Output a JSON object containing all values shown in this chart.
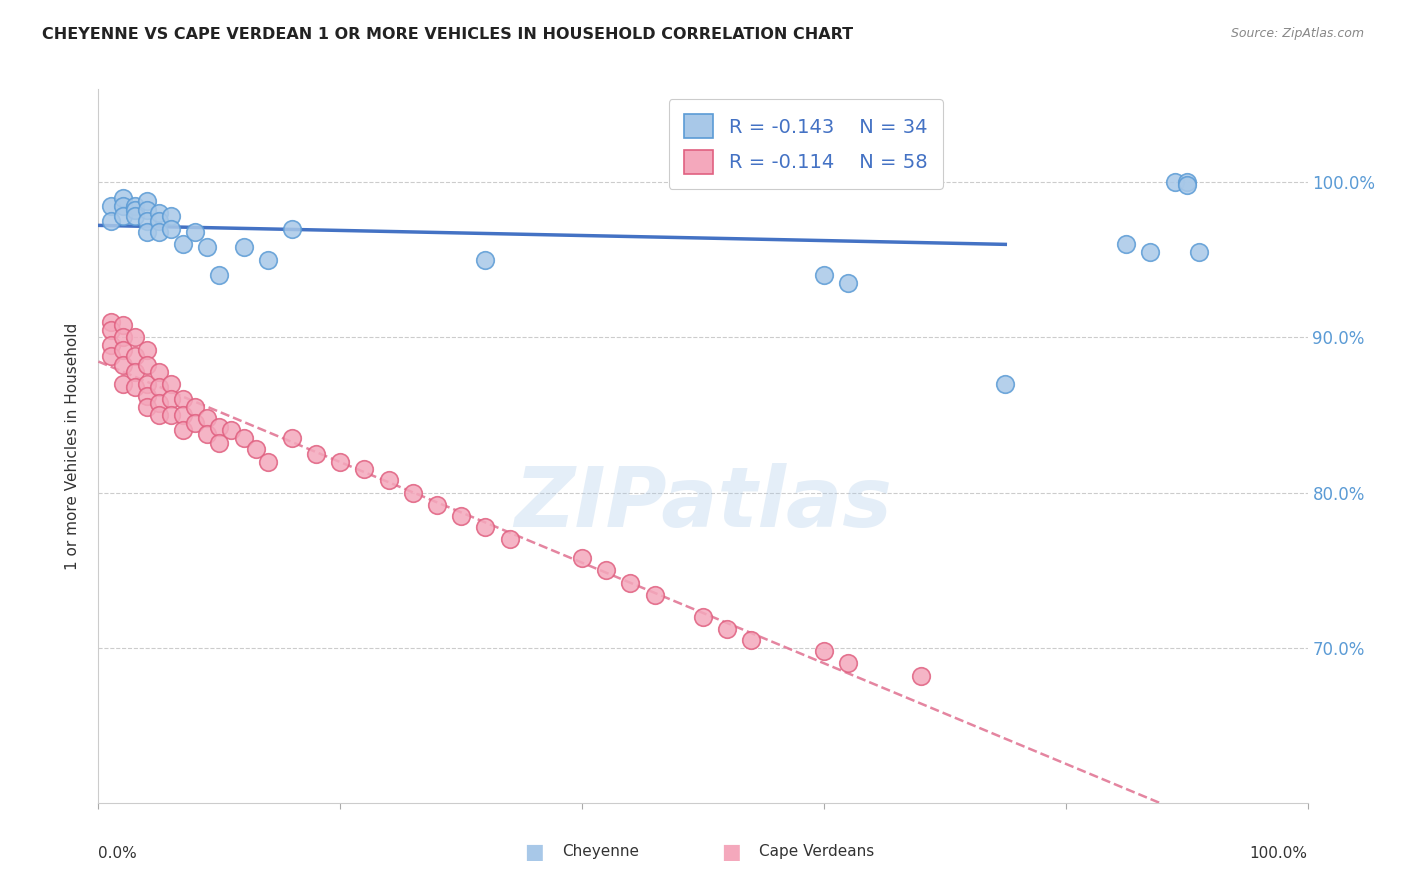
{
  "title": "CHEYENNE VS CAPE VERDEAN 1 OR MORE VEHICLES IN HOUSEHOLD CORRELATION CHART",
  "source": "Source: ZipAtlas.com",
  "ylabel": "1 or more Vehicles in Household",
  "ytick_vals": [
    0.7,
    0.8,
    0.9,
    1.0
  ],
  "ytick_labels": [
    "70.0%",
    "80.0%",
    "90.0%",
    "100.0%"
  ],
  "legend_r_cheyenne": "-0.143",
  "legend_n_cheyenne": "34",
  "legend_r_cape": "-0.114",
  "legend_n_cape": "58",
  "cheyenne_color": "#a8c8e8",
  "cape_color": "#f4a8bc",
  "cheyenne_edge_color": "#5b9bd5",
  "cape_edge_color": "#e06080",
  "cheyenne_line_color": "#4472c4",
  "cape_line_color": "#e07090",
  "watermark": "ZIPatlas",
  "background_color": "#ffffff",
  "xlim": [
    0.0,
    1.0
  ],
  "ylim": [
    0.6,
    1.06
  ],
  "cheyenne_x": [
    0.01,
    0.01,
    0.02,
    0.02,
    0.02,
    0.03,
    0.03,
    0.03,
    0.04,
    0.04,
    0.04,
    0.04,
    0.05,
    0.05,
    0.05,
    0.06,
    0.06,
    0.07,
    0.08,
    0.09,
    0.1,
    0.12,
    0.14,
    0.16,
    0.32,
    0.6,
    0.62,
    0.75,
    0.85,
    0.87,
    0.89,
    0.9,
    0.9,
    0.91
  ],
  "cheyenne_y": [
    0.985,
    0.975,
    0.99,
    0.985,
    0.978,
    0.985,
    0.982,
    0.978,
    0.988,
    0.982,
    0.975,
    0.968,
    0.98,
    0.975,
    0.968,
    0.978,
    0.97,
    0.96,
    0.968,
    0.958,
    0.94,
    0.958,
    0.95,
    0.97,
    0.95,
    0.94,
    0.935,
    0.87,
    0.96,
    0.955,
    1.0,
    1.0,
    0.998,
    0.955
  ],
  "cape_x": [
    0.01,
    0.01,
    0.01,
    0.01,
    0.02,
    0.02,
    0.02,
    0.02,
    0.02,
    0.03,
    0.03,
    0.03,
    0.03,
    0.04,
    0.04,
    0.04,
    0.04,
    0.04,
    0.05,
    0.05,
    0.05,
    0.05,
    0.06,
    0.06,
    0.06,
    0.07,
    0.07,
    0.07,
    0.08,
    0.08,
    0.09,
    0.09,
    0.1,
    0.1,
    0.11,
    0.12,
    0.13,
    0.14,
    0.16,
    0.18,
    0.2,
    0.22,
    0.24,
    0.26,
    0.28,
    0.3,
    0.32,
    0.34,
    0.4,
    0.42,
    0.44,
    0.46,
    0.5,
    0.52,
    0.54,
    0.6,
    0.62,
    0.68
  ],
  "cape_y": [
    0.91,
    0.905,
    0.895,
    0.888,
    0.908,
    0.9,
    0.892,
    0.882,
    0.87,
    0.9,
    0.888,
    0.878,
    0.868,
    0.892,
    0.882,
    0.87,
    0.862,
    0.855,
    0.878,
    0.868,
    0.858,
    0.85,
    0.87,
    0.86,
    0.85,
    0.86,
    0.85,
    0.84,
    0.855,
    0.845,
    0.848,
    0.838,
    0.842,
    0.832,
    0.84,
    0.835,
    0.828,
    0.82,
    0.835,
    0.825,
    0.82,
    0.815,
    0.808,
    0.8,
    0.792,
    0.785,
    0.778,
    0.77,
    0.758,
    0.75,
    0.742,
    0.734,
    0.72,
    0.712,
    0.705,
    0.698,
    0.69,
    0.682
  ]
}
